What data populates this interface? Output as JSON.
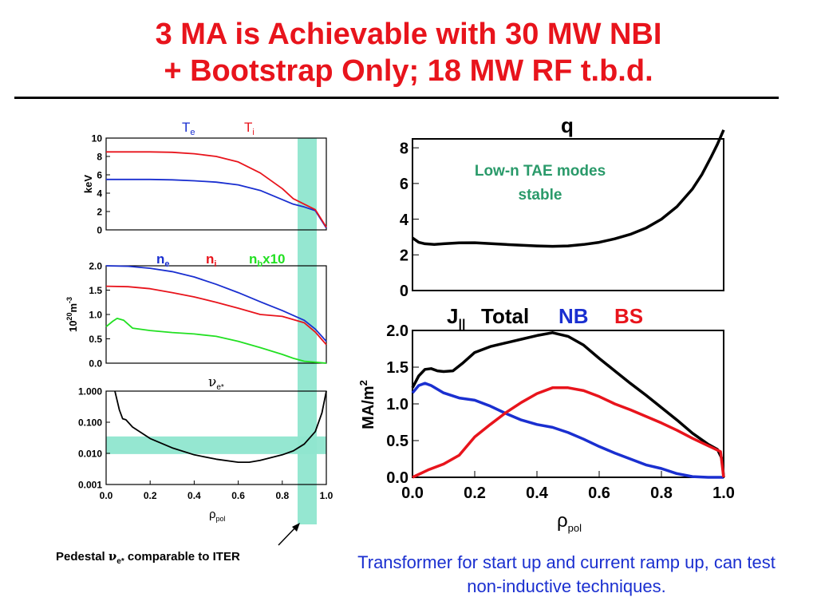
{
  "title": {
    "line1": "3 MA  is Achievable with 30 MW NBI",
    "line2": "+ Bootstrap Only; 18 MW RF t.b.d."
  },
  "colors": {
    "title": "#e8141c",
    "blue": "#1a2fd0",
    "red": "#e8141c",
    "green": "#22e022",
    "black": "#000000",
    "band": "#8fe6cf",
    "annotation_green": "#2a9a6a"
  },
  "left_xlabel": "ρ",
  "left_xlabel_sub": "pol",
  "right_xlabel": "ρ",
  "right_xlabel_sub": "pol",
  "pedestal_note": "Pedestal νe* comparable to ITER",
  "pedestal_note_parts": {
    "a": "Pedestal ",
    "nu": "ν",
    "sub": "e*",
    "b": " comparable to ITER"
  },
  "transformer_note": "Transformer for start up and current ramp up, can test non-inductive techniques.",
  "chart_data": [
    {
      "type": "line",
      "id": "temperature",
      "ylabel": "keV",
      "xlim": [
        0,
        1.0
      ],
      "ylim": [
        0,
        10
      ],
      "yticks": [
        "0",
        "2",
        "4",
        "6",
        "8",
        "10"
      ],
      "legend": [
        {
          "base": "T",
          "sub": "e",
          "color": "#1a2fd0"
        },
        {
          "base": "T",
          "sub": "i",
          "color": "#e8141c"
        }
      ],
      "series": [
        {
          "name": "Te",
          "color": "#1a2fd0",
          "x": [
            0,
            0.1,
            0.2,
            0.3,
            0.4,
            0.5,
            0.6,
            0.7,
            0.8,
            0.85,
            0.9,
            0.95,
            1.0
          ],
          "y": [
            5.5,
            5.5,
            5.5,
            5.45,
            5.35,
            5.2,
            4.9,
            4.3,
            3.3,
            2.8,
            2.5,
            2.1,
            0.2
          ]
        },
        {
          "name": "Ti",
          "color": "#e8141c",
          "x": [
            0,
            0.1,
            0.2,
            0.3,
            0.4,
            0.5,
            0.6,
            0.7,
            0.8,
            0.85,
            0.9,
            0.95,
            1.0
          ],
          "y": [
            8.5,
            8.5,
            8.5,
            8.45,
            8.3,
            8.0,
            7.4,
            6.2,
            4.5,
            3.4,
            2.8,
            2.2,
            0.3
          ]
        }
      ]
    },
    {
      "type": "line",
      "id": "density",
      "ylabel": "10^20 m^-3",
      "ylabel_parts": {
        "base": "10",
        "exp": "20",
        "unit": "m",
        "unit_exp": "-3"
      },
      "xlim": [
        0,
        1.0
      ],
      "ylim": [
        0,
        2.0
      ],
      "yticks": [
        "0.0",
        "0.5",
        "1.0",
        "1.5",
        "2.0"
      ],
      "legend": [
        {
          "base": "n",
          "sub": "e",
          "extra": "",
          "color": "#1a2fd0"
        },
        {
          "base": "n",
          "sub": "i",
          "extra": "",
          "color": "#e8141c"
        },
        {
          "base": "n",
          "sub": "b",
          "extra": "x10",
          "color": "#22e022"
        }
      ],
      "series": [
        {
          "name": "ne",
          "color": "#1a2fd0",
          "x": [
            0,
            0.1,
            0.2,
            0.3,
            0.4,
            0.5,
            0.6,
            0.7,
            0.8,
            0.9,
            0.95,
            1.0
          ],
          "y": [
            2.0,
            1.99,
            1.95,
            1.88,
            1.77,
            1.62,
            1.45,
            1.26,
            1.08,
            0.88,
            0.7,
            0.45
          ]
        },
        {
          "name": "ni",
          "color": "#e8141c",
          "x": [
            0,
            0.1,
            0.2,
            0.3,
            0.4,
            0.5,
            0.6,
            0.7,
            0.8,
            0.9,
            0.95,
            1.0
          ],
          "y": [
            1.58,
            1.57,
            1.53,
            1.45,
            1.36,
            1.25,
            1.13,
            1.0,
            0.96,
            0.83,
            0.64,
            0.38
          ]
        },
        {
          "name": "nb x10",
          "color": "#22e022",
          "x": [
            0,
            0.03,
            0.05,
            0.08,
            0.12,
            0.2,
            0.3,
            0.4,
            0.5,
            0.6,
            0.7,
            0.8,
            0.85,
            0.9,
            0.95,
            1.0
          ],
          "y": [
            0.75,
            0.86,
            0.92,
            0.88,
            0.72,
            0.67,
            0.63,
            0.6,
            0.55,
            0.45,
            0.32,
            0.18,
            0.1,
            0.04,
            0.02,
            0.0
          ]
        }
      ]
    },
    {
      "type": "line",
      "id": "collisionality",
      "title": "ν",
      "title_sub": "e*",
      "yscale": "log",
      "xlim": [
        0,
        1.0
      ],
      "ylim": [
        0.001,
        1.0
      ],
      "xticks": [
        "0.0",
        "0.2",
        "0.4",
        "0.6",
        "0.8",
        "1.0"
      ],
      "yticks": [
        "0.001",
        "0.010",
        "0.100",
        "1.000"
      ],
      "series": [
        {
          "name": "nu_e*",
          "color": "#000000",
          "x": [
            0.04,
            0.05,
            0.06,
            0.075,
            0.09,
            0.12,
            0.2,
            0.3,
            0.4,
            0.5,
            0.6,
            0.65,
            0.7,
            0.8,
            0.85,
            0.9,
            0.95,
            0.98,
            1.0
          ],
          "y": [
            1.0,
            0.5,
            0.25,
            0.13,
            0.12,
            0.07,
            0.03,
            0.015,
            0.009,
            0.0065,
            0.0052,
            0.0052,
            0.006,
            0.009,
            0.012,
            0.02,
            0.05,
            0.2,
            1.0
          ]
        }
      ]
    },
    {
      "type": "line",
      "id": "safety_factor",
      "title": "q",
      "xlim": [
        0,
        1.0
      ],
      "ylim": [
        0,
        8.5
      ],
      "yticks": [
        "0",
        "2",
        "4",
        "6",
        "8"
      ],
      "annotation": {
        "line1": "Low-n TAE modes",
        "line2": "stable"
      },
      "series": [
        {
          "name": "q",
          "color": "#000000",
          "x": [
            0,
            0.02,
            0.04,
            0.07,
            0.1,
            0.15,
            0.2,
            0.3,
            0.4,
            0.45,
            0.5,
            0.55,
            0.6,
            0.65,
            0.7,
            0.75,
            0.8,
            0.85,
            0.9,
            0.93,
            0.96,
            0.98,
            1.0
          ],
          "y": [
            2.95,
            2.7,
            2.62,
            2.58,
            2.62,
            2.67,
            2.68,
            2.58,
            2.5,
            2.48,
            2.5,
            2.58,
            2.7,
            2.9,
            3.15,
            3.5,
            4.0,
            4.7,
            5.7,
            6.5,
            7.5,
            8.2,
            9.0
          ]
        }
      ]
    },
    {
      "type": "line",
      "id": "current_density",
      "ylabel": "MA/m",
      "ylabel_exp": "2",
      "legend": [
        {
          "text": "Total",
          "color": "#000000"
        },
        {
          "text": "NB",
          "color": "#1a2fd0"
        },
        {
          "text": "BS",
          "color": "#e8141c"
        }
      ],
      "legend_prefix": {
        "base": "J",
        "sub": "||"
      },
      "xlim": [
        0,
        1.0
      ],
      "ylim": [
        0,
        2.0
      ],
      "xticks": [
        "0.0",
        "0.2",
        "0.4",
        "0.6",
        "0.8",
        "1.0"
      ],
      "yticks": [
        "0.0",
        "0.5",
        "1.0",
        "1.5",
        "2.0"
      ],
      "series": [
        {
          "name": "Total",
          "color": "#000000",
          "x": [
            0,
            0.02,
            0.04,
            0.06,
            0.08,
            0.1,
            0.13,
            0.16,
            0.2,
            0.25,
            0.3,
            0.35,
            0.4,
            0.45,
            0.5,
            0.55,
            0.6,
            0.65,
            0.7,
            0.75,
            0.8,
            0.85,
            0.9,
            0.95,
            0.98,
            0.995,
            1.0
          ],
          "y": [
            1.22,
            1.38,
            1.47,
            1.48,
            1.45,
            1.44,
            1.45,
            1.55,
            1.7,
            1.78,
            1.83,
            1.88,
            1.93,
            1.97,
            1.92,
            1.8,
            1.62,
            1.45,
            1.28,
            1.12,
            0.95,
            0.78,
            0.6,
            0.45,
            0.38,
            0.25,
            0.0
          ]
        },
        {
          "name": "NB",
          "color": "#1a2fd0",
          "x": [
            0,
            0.02,
            0.04,
            0.06,
            0.1,
            0.15,
            0.2,
            0.25,
            0.3,
            0.35,
            0.4,
            0.45,
            0.5,
            0.55,
            0.6,
            0.65,
            0.7,
            0.75,
            0.8,
            0.85,
            0.9,
            0.95,
            1.0
          ],
          "y": [
            1.15,
            1.25,
            1.28,
            1.25,
            1.15,
            1.08,
            1.05,
            0.97,
            0.87,
            0.78,
            0.72,
            0.68,
            0.61,
            0.52,
            0.42,
            0.33,
            0.25,
            0.17,
            0.12,
            0.05,
            0.01,
            0.0,
            0.0
          ]
        },
        {
          "name": "BS",
          "color": "#e8141c",
          "x": [
            0,
            0.05,
            0.1,
            0.15,
            0.2,
            0.25,
            0.3,
            0.35,
            0.4,
            0.45,
            0.5,
            0.55,
            0.6,
            0.65,
            0.7,
            0.75,
            0.8,
            0.85,
            0.9,
            0.95,
            0.99,
            1.0
          ],
          "y": [
            0.0,
            0.1,
            0.18,
            0.3,
            0.55,
            0.72,
            0.88,
            1.02,
            1.14,
            1.22,
            1.22,
            1.18,
            1.1,
            1.0,
            0.92,
            0.83,
            0.74,
            0.64,
            0.53,
            0.43,
            0.35,
            0.0
          ]
        }
      ]
    }
  ]
}
